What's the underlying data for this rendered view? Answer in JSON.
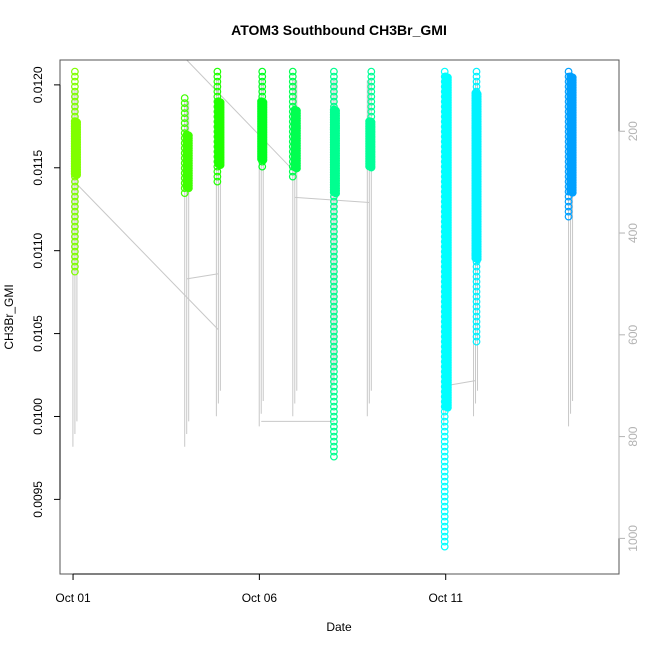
{
  "chart_data": {
    "type": "scatter",
    "title": "ATOM3 Southbound CH3Br_GMI",
    "xlabel": "Date",
    "ylabel": "CH3Br_GMI",
    "x_ticks": [
      "Oct 01",
      "Oct 06",
      "Oct 11"
    ],
    "x_tick_days": [
      1,
      6,
      11
    ],
    "xlim_days": [
      0.65,
      15.65
    ],
    "y_ticks": [
      "0.0095",
      "0.0100",
      "0.0105",
      "0.0110",
      "0.0115",
      "0.0120"
    ],
    "y_tick_values": [
      0.0095,
      0.01,
      0.0105,
      0.011,
      0.0115,
      0.012
    ],
    "ylim": [
      0.00905,
      0.01215
    ],
    "y2_label": "",
    "y2_ticks": [
      "200",
      "400",
      "600",
      "800",
      "1000"
    ],
    "y2_tick_values": [
      200,
      400,
      600,
      800,
      1000
    ],
    "y2lim_reversed": [
      60,
      1070
    ],
    "y2_color": "#b3b3b3",
    "segments": [
      {
        "day": 1.05,
        "ymin": 0.01087,
        "ymax": 0.01208,
        "dense_min": 0.01145,
        "dense_max": 0.01178,
        "color": "#80ff00",
        "p_top": 120,
        "p_bottom": 820
      },
      {
        "day": 4.05,
        "ymin": 0.01132,
        "ymax": 0.01192,
        "dense_min": 0.01138,
        "dense_max": 0.0117,
        "color": "#40ff00",
        "p_top": 140,
        "p_bottom": 820
      },
      {
        "day": 4.9,
        "ymin": 0.0114,
        "ymax": 0.01208,
        "dense_min": 0.01152,
        "dense_max": 0.0119,
        "color": "#20ff00",
        "p_top": 100,
        "p_bottom": 760
      },
      {
        "day": 6.05,
        "ymin": 0.01148,
        "ymax": 0.01208,
        "dense_min": 0.01155,
        "dense_max": 0.0119,
        "color": "#00ff20",
        "p_top": 100,
        "p_bottom": 780
      },
      {
        "day": 6.95,
        "ymin": 0.01142,
        "ymax": 0.01208,
        "dense_min": 0.0115,
        "dense_max": 0.01185,
        "color": "#00ff50",
        "p_top": 100,
        "p_bottom": 760
      },
      {
        "day": 8.0,
        "ymin": 0.00975,
        "ymax": 0.01208,
        "dense_min": 0.01135,
        "dense_max": 0.01185,
        "color": "#00ff90",
        "p_top": 100,
        "p_bottom": 720
      },
      {
        "day": 8.95,
        "ymin": 0.01148,
        "ymax": 0.01208,
        "dense_min": 0.0115,
        "dense_max": 0.01178,
        "color": "#00ff98",
        "p_top": 100,
        "p_bottom": 760
      },
      {
        "day": 11.0,
        "ymin": 0.0092,
        "ymax": 0.01208,
        "dense_min": 0.01005,
        "dense_max": 0.01205,
        "color": "#00ffff",
        "p_top": 100,
        "p_bottom": 780
      },
      {
        "day": 11.8,
        "ymin": 0.01045,
        "ymax": 0.01208,
        "dense_min": 0.01095,
        "dense_max": 0.01195,
        "color": "#00f2ff",
        "p_top": 100,
        "p_bottom": 760
      },
      {
        "day": 14.35,
        "ymin": 0.01118,
        "ymax": 0.01208,
        "dense_min": 0.01135,
        "dense_max": 0.01205,
        "color": "#00a0ff",
        "p_top": 100,
        "p_bottom": 780
      }
    ],
    "pressure_links": [
      {
        "from_day": 1.05,
        "to_day": 4.9,
        "from_p": 300,
        "to_p": 590
      },
      {
        "from_day": 4.05,
        "to_day": 4.9,
        "from_p": 490,
        "to_p": 480
      },
      {
        "from_day": 4.05,
        "to_day": 6.95,
        "from_p": 60,
        "to_p": 280
      },
      {
        "from_day": 6.05,
        "to_day": 8.0,
        "from_p": 770,
        "to_p": 770
      },
      {
        "from_day": 6.95,
        "to_day": 8.95,
        "from_p": 330,
        "to_p": 340
      },
      {
        "from_day": 11.0,
        "to_day": 11.8,
        "from_p": 700,
        "to_p": 690
      }
    ]
  }
}
